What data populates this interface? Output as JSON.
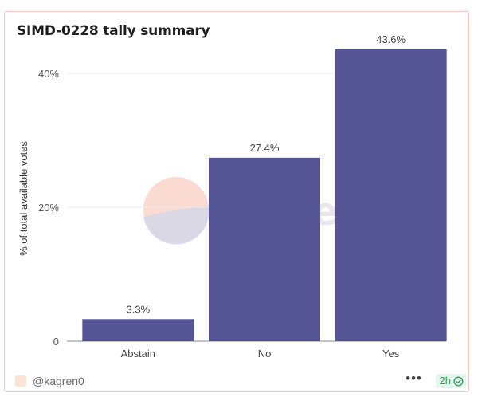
{
  "chart_data": {
    "type": "bar",
    "title": "SIMD-0228 tally summary",
    "categories": [
      "Abstain",
      "No",
      "Yes"
    ],
    "values": [
      3.3,
      27.4,
      43.6
    ],
    "value_labels": [
      "3.3%",
      "27.4%",
      "43.6%"
    ],
    "ylabel": "% of total available votes",
    "xlabel": "",
    "ylim": [
      0,
      45
    ],
    "yticks": [
      0,
      20,
      40
    ],
    "ytick_labels": [
      "0",
      "20%",
      "40%"
    ],
    "grid": true,
    "bar_color": "#565596"
  },
  "watermark": "Dune",
  "footer": {
    "author": "@kagren0",
    "more_icon": "ellipsis-icon",
    "age": "2h",
    "status_icon": "check-circle-icon",
    "status_color": "#2f9e5b"
  }
}
